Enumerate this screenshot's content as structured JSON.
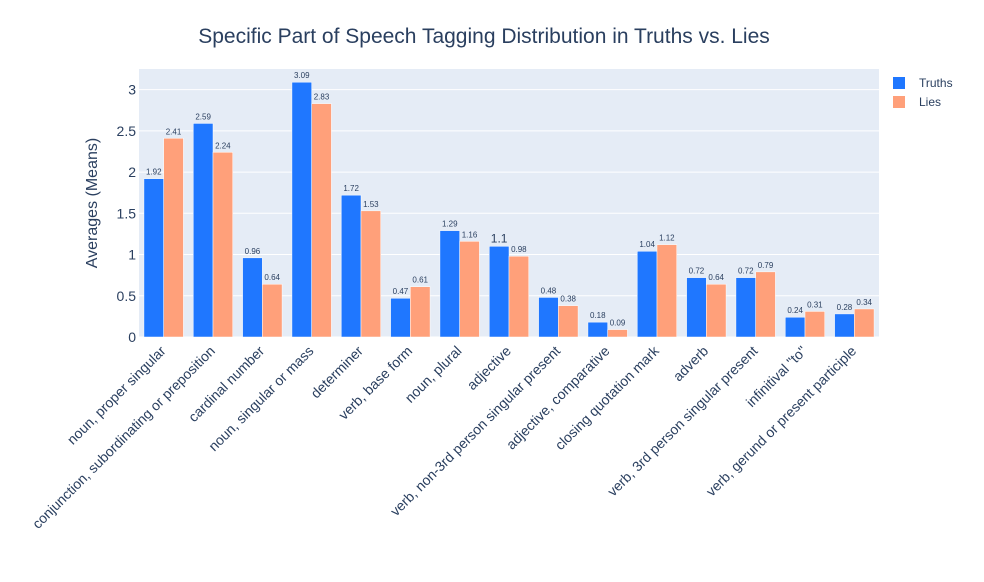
{
  "chart_data": {
    "type": "bar",
    "title": "Specific Part of Speech Tagging Distribution in Truths vs. Lies",
    "ylabel": "Averages (Means)",
    "xlabel": "",
    "ylim": [
      0,
      3.25
    ],
    "yticks": [
      0,
      0.5,
      1,
      1.5,
      2,
      2.5,
      3
    ],
    "ytick_labels": [
      "0",
      "0.5",
      "1",
      "1.5",
      "2",
      "2.5",
      "3"
    ],
    "grid": true,
    "legend_position": "top-right",
    "categories": [
      "noun, proper singular",
      "conjunction, subordinating or preposition",
      "cardinal number",
      "noun, singular or mass",
      "determiner",
      "verb, base form",
      "noun, plural",
      "adjective",
      "verb, non-3rd person singular present",
      "adjective, comparative",
      "closing quotation mark",
      "adverb",
      "verb, 3rd person singular present",
      "infinitival \"to\"",
      "verb, gerund or present participle"
    ],
    "series": [
      {
        "name": "Truths",
        "color": "#1f77ff",
        "values": [
          1.92,
          2.59,
          0.96,
          3.09,
          1.72,
          0.47,
          1.29,
          1.1,
          0.48,
          0.18,
          1.04,
          0.72,
          0.72,
          0.24,
          0.28
        ],
        "labels": [
          "1.92",
          "2.59",
          "0.96",
          "3.09",
          "1.72",
          "0.47",
          "1.29",
          "1.1",
          "0.48",
          "0.18",
          "1.04",
          "0.72",
          "0.72",
          "0.24",
          "0.28"
        ]
      },
      {
        "name": "Lies",
        "color": "#ffa07a",
        "values": [
          2.41,
          2.24,
          0.64,
          2.83,
          1.53,
          0.61,
          1.16,
          0.98,
          0.38,
          0.09,
          1.12,
          0.64,
          0.79,
          0.31,
          0.34
        ],
        "labels": [
          "2.41",
          "2.24",
          "0.64",
          "2.83",
          "1.53",
          "0.61",
          "1.16",
          "0.98",
          "0.38",
          "0.09",
          "1.12",
          "0.64",
          "0.79",
          "0.31",
          "0.34"
        ]
      }
    ],
    "plot_bg": "#e5ecf6",
    "text_color": "#2a3f5f"
  }
}
